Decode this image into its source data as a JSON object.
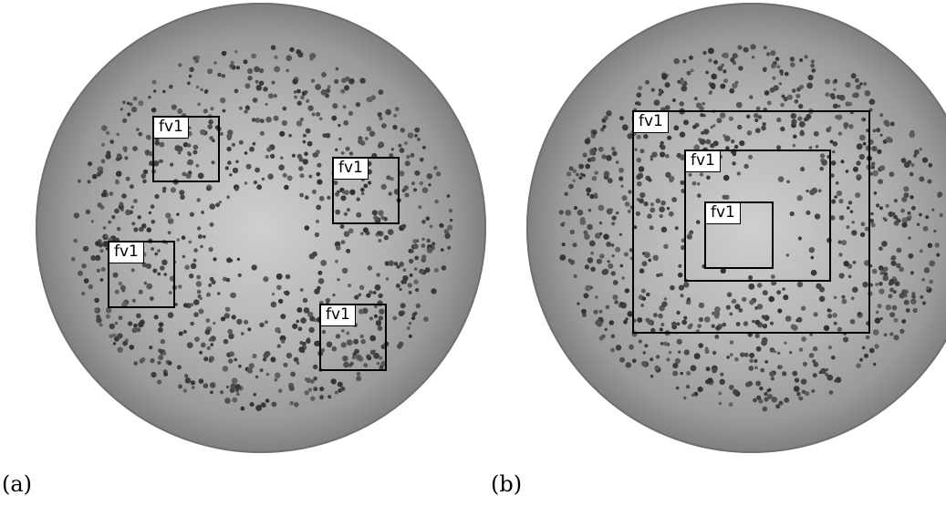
{
  "panels": [
    {
      "id": "a",
      "caption": "(a)",
      "description_kind": "dish-with-scattered-rois",
      "rois": [
        {
          "label": "fv1"
        },
        {
          "label": "fv1"
        },
        {
          "label": "fv1"
        },
        {
          "label": "fv1"
        }
      ]
    },
    {
      "id": "b",
      "caption": "(b)",
      "description_kind": "dish-with-nested-rois",
      "rois": [
        {
          "label": "fv1"
        },
        {
          "label": "fv1"
        },
        {
          "label": "fv1"
        }
      ]
    }
  ],
  "colors": {
    "dish": "#9a9a9a",
    "dot": "#4a4a4a",
    "roi_border": "#000000",
    "label_bg": "#ffffff"
  }
}
